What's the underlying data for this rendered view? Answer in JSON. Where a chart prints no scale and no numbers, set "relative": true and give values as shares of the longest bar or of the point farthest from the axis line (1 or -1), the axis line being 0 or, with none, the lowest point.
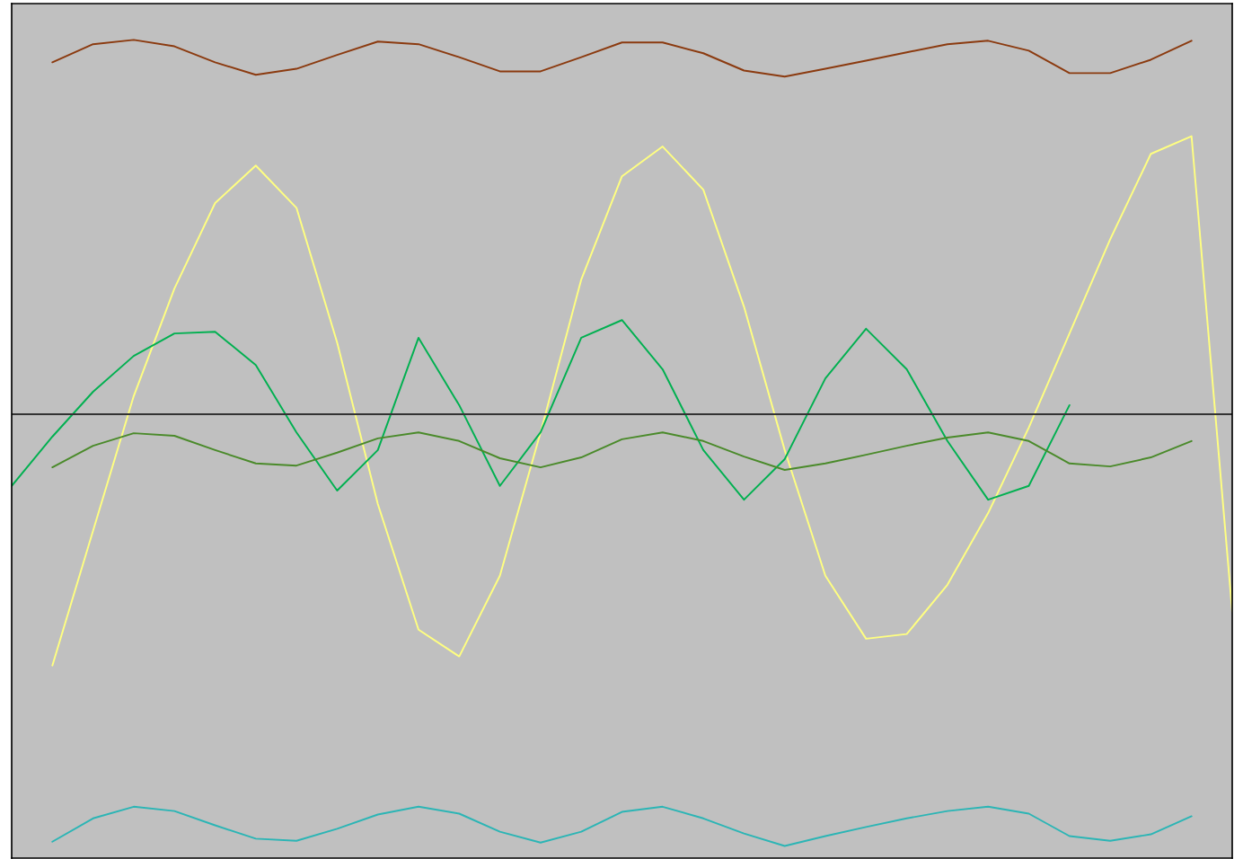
{
  "chart_data": {
    "type": "line",
    "relative": true,
    "categories": [
      null,
      null,
      null,
      null,
      null,
      null,
      null,
      null,
      null,
      null,
      null,
      null,
      null,
      null,
      null,
      null,
      null,
      null,
      null,
      null,
      null,
      null,
      null,
      null,
      null,
      null,
      null,
      null,
      null,
      null,
      null
    ],
    "series": [
      {
        "color": "#8b3a0f",
        "values": [
          null,
          0.815,
          0.857,
          0.867,
          0.852,
          0.815,
          0.786,
          0.8,
          0.832,
          0.863,
          0.857,
          0.827,
          0.794,
          0.794,
          0.827,
          0.861,
          0.861,
          0.836,
          0.796,
          0.782,
          0.8,
          0.819,
          0.838,
          0.857,
          0.865,
          0.842,
          0.79,
          0.79,
          0.821,
          0.865,
          null
        ]
      },
      {
        "color": "#ffff80",
        "values": [
          null,
          -0.582,
          -0.27,
          0.042,
          0.291,
          0.489,
          0.576,
          0.478,
          0.166,
          -0.208,
          -0.499,
          -0.561,
          -0.374,
          -0.042,
          0.312,
          0.551,
          0.62,
          0.52,
          0.249,
          -0.083,
          -0.374,
          -0.52,
          -0.509,
          -0.395,
          -0.229,
          -0.031,
          0.187,
          0.405,
          0.603,
          0.644,
          -0.457
        ]
      },
      {
        "color": "#00b050",
        "values": [
          -0.166,
          -0.052,
          0.052,
          0.135,
          0.187,
          0.191,
          0.114,
          -0.042,
          -0.177,
          -0.083,
          0.177,
          0.021,
          -0.166,
          -0.042,
          0.177,
          0.218,
          0.104,
          -0.083,
          -0.198,
          -0.104,
          0.083,
          0.198,
          0.104,
          -0.062,
          -0.198,
          -0.166,
          0.021,
          null,
          null,
          null,
          null
        ]
      },
      {
        "color": "#4a8a2a",
        "values": [
          null,
          -0.123,
          -0.073,
          -0.044,
          -0.05,
          -0.083,
          -0.114,
          -0.119,
          -0.089,
          -0.056,
          -0.042,
          -0.062,
          -0.102,
          -0.123,
          -0.1,
          -0.058,
          -0.042,
          -0.062,
          -0.098,
          -0.129,
          -0.114,
          -0.094,
          -0.073,
          -0.054,
          -0.042,
          -0.062,
          -0.114,
          -0.121,
          -0.1,
          -0.062,
          null
        ]
      },
      {
        "color": "#2bb5b5",
        "values": [
          null,
          -0.99,
          -0.936,
          -0.909,
          -0.919,
          -0.952,
          -0.983,
          -0.988,
          -0.96,
          -0.927,
          -0.909,
          -0.925,
          -0.967,
          -0.992,
          -0.967,
          -0.921,
          -0.909,
          -0.936,
          -0.971,
          -1,
          -0.977,
          -0.956,
          -0.936,
          -0.919,
          -0.909,
          -0.925,
          -0.977,
          -0.988,
          -0.973,
          -0.931,
          null
        ]
      }
    ]
  }
}
